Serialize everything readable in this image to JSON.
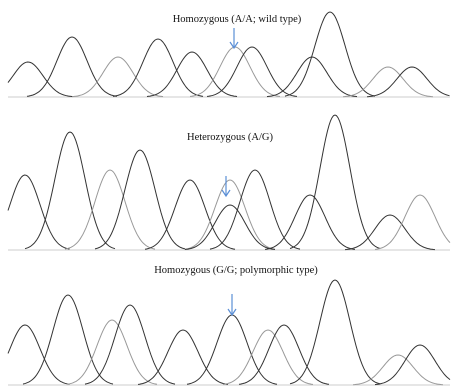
{
  "panels": [
    {
      "title": "Homozygous (A/A; wild type)"
    },
    {
      "title": "Heterozygous (A/G)"
    },
    {
      "title": "Homozygous (G/G; polymorphic type)"
    }
  ]
}
